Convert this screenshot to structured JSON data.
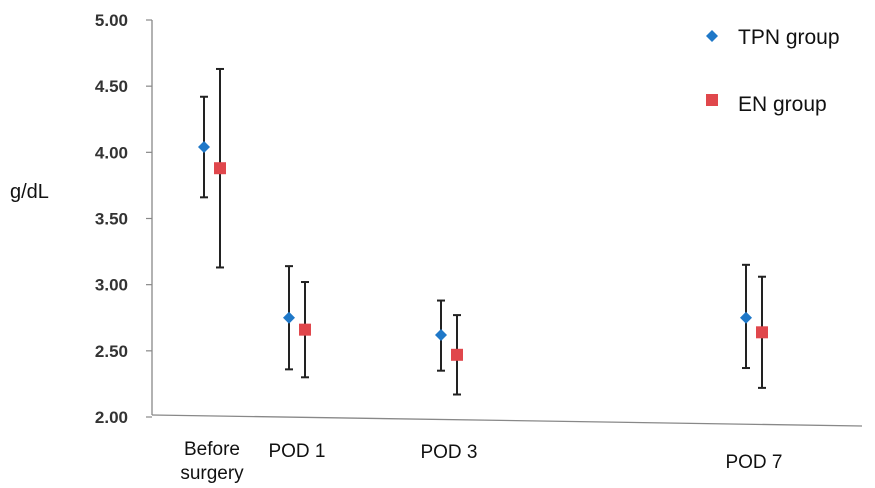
{
  "chart_data": {
    "type": "scatter",
    "ylabel": "g/dL",
    "ylim": [
      2.0,
      5.0
    ],
    "yticks": [
      "2.00",
      "2.50",
      "3.00",
      "3.50",
      "4.00",
      "4.50",
      "5.00"
    ],
    "categories": [
      [
        "Before",
        "surgery"
      ],
      [
        "POD 1"
      ],
      [
        "POD 3"
      ],
      [
        "POD 7"
      ]
    ],
    "series": [
      {
        "name": "TPN group",
        "marker": "diamond",
        "color": "#1f78c8",
        "values": [
          4.04,
          2.75,
          2.62,
          2.75
        ],
        "err_low": [
          3.66,
          2.36,
          2.35,
          2.37
        ],
        "err_high": [
          4.42,
          3.14,
          2.88,
          3.15
        ]
      },
      {
        "name": "EN group",
        "marker": "square",
        "color": "#e0474c",
        "values": [
          3.88,
          2.66,
          2.47,
          2.64
        ],
        "err_low": [
          3.13,
          2.3,
          2.17,
          2.22
        ],
        "err_high": [
          4.63,
          3.02,
          2.77,
          3.06
        ]
      }
    ],
    "grid": false,
    "legend_position": "top-right"
  }
}
